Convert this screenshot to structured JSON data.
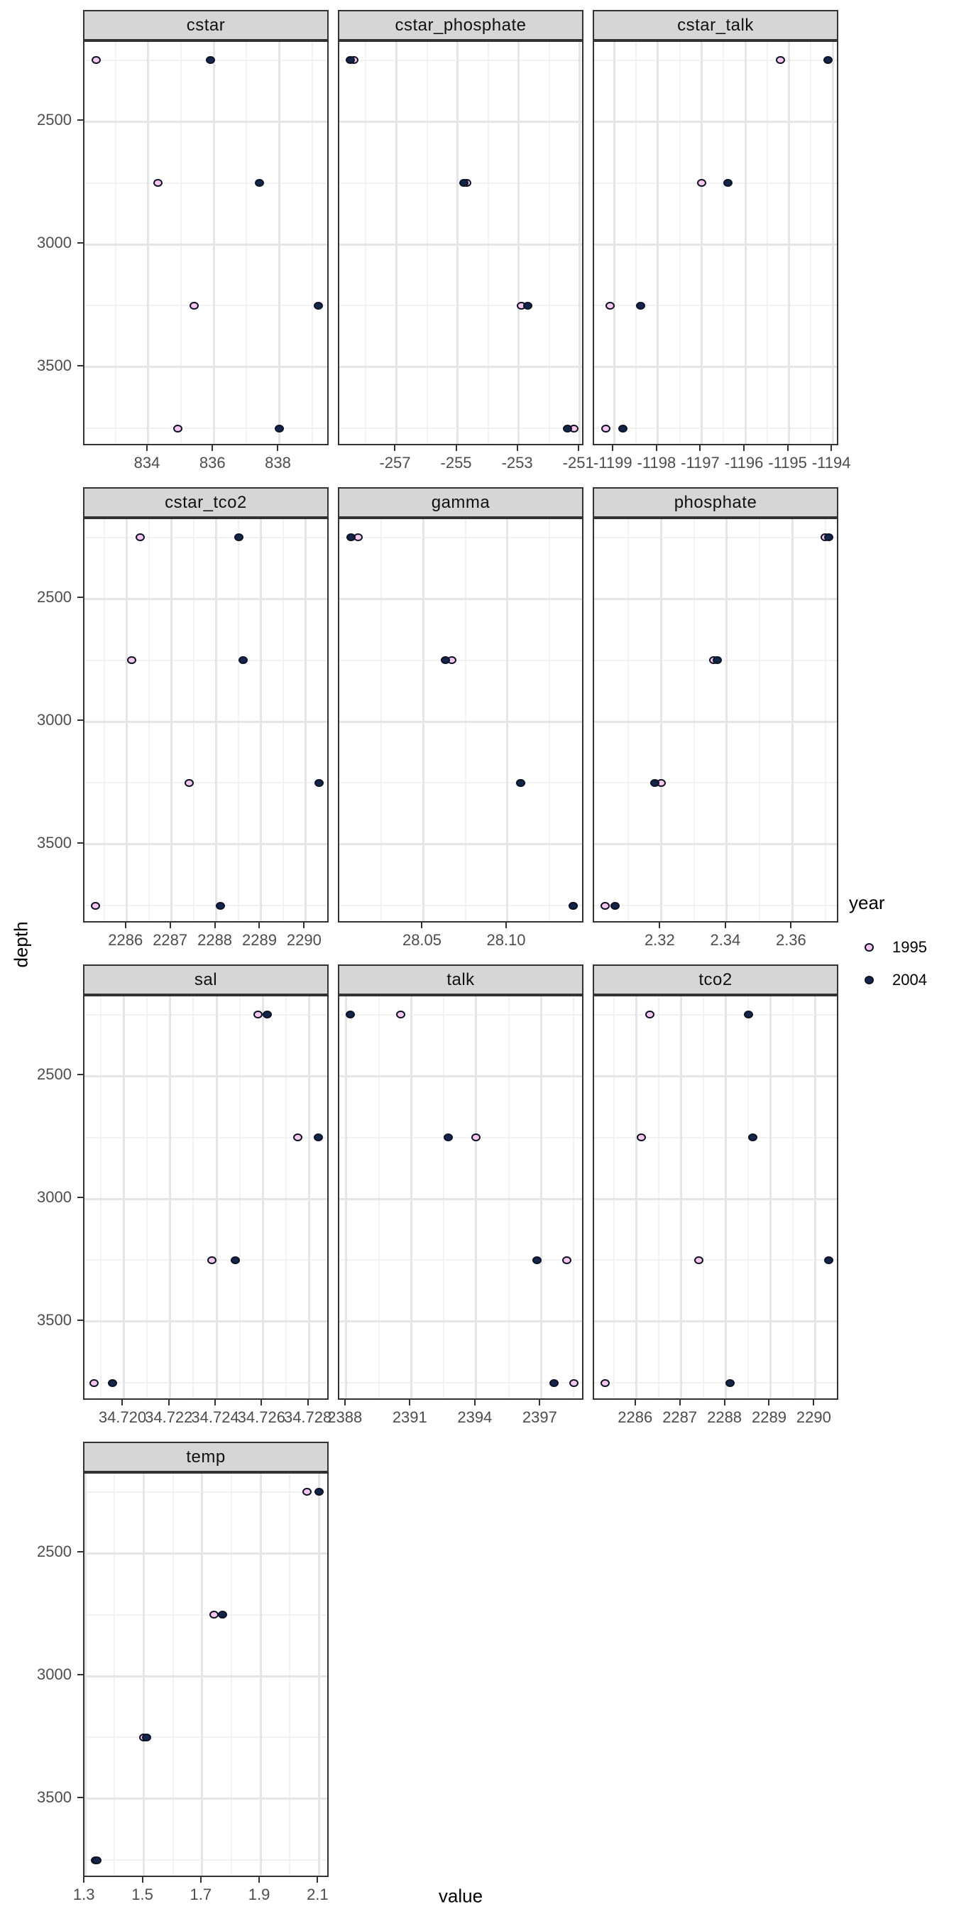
{
  "figure": {
    "x_axis_title": "value",
    "y_axis_title": "depth"
  },
  "legend": {
    "title": "year",
    "items": [
      {
        "label": "1995",
        "fill": "#f8c7ee"
      },
      {
        "label": "2004",
        "fill": "#13254b"
      }
    ]
  },
  "colors": {
    "point_1995_fill": "#f8c7ee",
    "point_2004_fill": "#13254b",
    "point_stroke": "#0d1226",
    "strip_background": "#d6d6d6",
    "panel_border": "#333333",
    "grid_major": "#e5e5e5",
    "grid_minor": "#f2f2f2",
    "tick_label": "#4d4d4d"
  },
  "chart_data": {
    "type": "scatter",
    "title": "",
    "xlabel": "value",
    "ylabel": "depth",
    "grid": true,
    "legend_position": "right",
    "y_reversed": true,
    "depths": [
      2250,
      2750,
      3250,
      3750
    ],
    "ylim": [
      2175,
      3825
    ],
    "yticks": [
      2500,
      3000,
      3500
    ],
    "yminor": [
      2250,
      2750,
      3250,
      3750
    ],
    "series_names": [
      "1995",
      "2004"
    ],
    "facets": [
      {
        "label": "cstar",
        "xlim": [
          832.05,
          839.55
        ],
        "xtick_values": [
          834,
          836,
          838
        ],
        "xtick_labels": [
          "834",
          "836",
          "838"
        ],
        "xminor": [
          833,
          835,
          837,
          839
        ],
        "values_1995": [
          832.4,
          834.3,
          835.4,
          834.9
        ],
        "values_2004": [
          835.9,
          837.4,
          839.2,
          838.0
        ]
      },
      {
        "label": "cstar_phosphate",
        "xlim": [
          -258.87,
          -250.83
        ],
        "xtick_values": [
          -257,
          -255,
          -253,
          -251
        ],
        "xtick_labels": [
          "-257",
          "-255",
          "-253",
          "-251"
        ],
        "xminor": [
          -258,
          -256,
          -254,
          -252
        ],
        "values_1995": [
          -258.4,
          -254.7,
          -252.9,
          -251.2
        ],
        "values_2004": [
          -258.5,
          -254.8,
          -252.7,
          -251.4
        ]
      },
      {
        "label": "cstar_talk",
        "xlim": [
          -1199.46,
          -1193.84
        ],
        "xtick_values": [
          -1199,
          -1198,
          -1197,
          -1196,
          -1195,
          -1194
        ],
        "xtick_labels": [
          "-1199",
          "-1198",
          "-1197",
          "-1196",
          "-1195",
          "-1194"
        ],
        "xminor": [
          -1199.5,
          -1198.5,
          -1197.5,
          -1196.5,
          -1195.5,
          -1194.5
        ],
        "values_1995": [
          -1195.2,
          -1197.0,
          -1199.1,
          -1199.2
        ],
        "values_2004": [
          -1194.1,
          -1196.4,
          -1198.4,
          -1198.8
        ]
      },
      {
        "label": "cstar_tco2",
        "xlim": [
          2285.05,
          2290.55
        ],
        "xtick_values": [
          2286,
          2287,
          2288,
          2289,
          2290
        ],
        "xtick_labels": [
          "2286",
          "2287",
          "2288",
          "2289",
          "2290"
        ],
        "xminor": [
          2285.5,
          2286.5,
          2287.5,
          2288.5,
          2289.5,
          2290.5
        ],
        "values_1995": [
          2286.3,
          2286.1,
          2287.4,
          2285.3
        ],
        "values_2004": [
          2288.5,
          2288.6,
          2290.3,
          2288.1
        ]
      },
      {
        "label": "gamma",
        "xlim": [
          28.0,
          28.146
        ],
        "xtick_values": [
          28.05,
          28.1
        ],
        "xtick_labels": [
          "28.05",
          "28.10"
        ],
        "xminor": [
          28.025,
          28.075,
          28.125
        ],
        "values_1995": [
          28.011,
          28.067,
          28.108,
          28.139
        ],
        "values_2004": [
          28.007,
          28.063,
          28.108,
          28.139
        ]
      },
      {
        "label": "phosphate",
        "xlim": [
          2.2996,
          2.3744
        ],
        "xtick_values": [
          2.32,
          2.34,
          2.36
        ],
        "xtick_labels": [
          "2.32",
          "2.34",
          "2.36"
        ],
        "xminor": [
          2.31,
          2.33,
          2.35,
          2.37
        ],
        "values_1995": [
          2.37,
          2.336,
          2.32,
          2.303
        ],
        "values_2004": [
          2.371,
          2.337,
          2.318,
          2.306
        ]
      },
      {
        "label": "sal",
        "xlim": [
          34.7183,
          34.7289
        ],
        "xtick_values": [
          34.72,
          34.722,
          34.724,
          34.726,
          34.728
        ],
        "xtick_labels": [
          "34.720",
          "34.722",
          "34.724",
          "34.726",
          "34.728"
        ],
        "xminor": [
          34.719,
          34.721,
          34.723,
          34.725,
          34.727
        ],
        "values_1995": [
          34.7258,
          34.7275,
          34.7238,
          34.7187
        ],
        "values_2004": [
          34.7262,
          34.7284,
          34.7248,
          34.7195
        ]
      },
      {
        "label": "talk",
        "xlim": [
          2387.68,
          2399.02
        ],
        "xtick_values": [
          2388,
          2391,
          2394,
          2397
        ],
        "xtick_labels": [
          "2388",
          "2391",
          "2394",
          "2397"
        ],
        "xminor": [
          2389.5,
          2392.5,
          2395.5,
          2398.5
        ],
        "values_1995": [
          2390.5,
          2394.0,
          2398.2,
          2398.5
        ],
        "values_2004": [
          2388.2,
          2392.7,
          2396.8,
          2397.6
        ]
      },
      {
        "label": "tco2",
        "xlim": [
          2285.05,
          2290.55
        ],
        "xtick_values": [
          2286,
          2287,
          2288,
          2289,
          2290
        ],
        "xtick_labels": [
          "2286",
          "2287",
          "2288",
          "2289",
          "2290"
        ],
        "xminor": [
          2285.5,
          2286.5,
          2287.5,
          2288.5,
          2289.5,
          2290.5
        ],
        "values_1995": [
          2286.3,
          2286.1,
          2287.4,
          2285.3
        ],
        "values_2004": [
          2288.5,
          2288.6,
          2290.3,
          2288.1
        ]
      },
      {
        "label": "temp",
        "xlim": [
          1.297,
          2.138
        ],
        "xtick_values": [
          1.3,
          1.5,
          1.7,
          1.9,
          2.1
        ],
        "xtick_labels": [
          "1.3",
          "1.5",
          "1.7",
          "1.9",
          "2.1"
        ],
        "xminor": [
          1.4,
          1.6,
          1.8,
          2.0
        ],
        "values_1995": [
          2.06,
          1.74,
          1.5,
          1.335
        ],
        "values_2004": [
          2.1,
          1.77,
          1.51,
          1.34
        ]
      }
    ]
  }
}
